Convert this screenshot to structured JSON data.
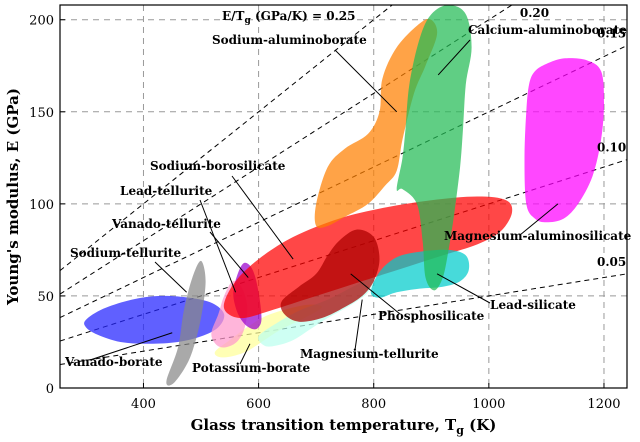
{
  "chart_data": {
    "type": "area",
    "xlabel": "Glass transition temperature, T",
    "xlabel_sub": "g",
    "xlabel_unit": " (K)",
    "ylabel": "Young's modulus, E (GPa)",
    "xlim": [
      255,
      1240
    ],
    "ylim": [
      0,
      208
    ],
    "xticks": [
      400,
      600,
      800,
      1000,
      1200
    ],
    "yticks": [
      0,
      50,
      100,
      150,
      200
    ],
    "grid": true,
    "ratio_lines": [
      {
        "value": 0.25,
        "label": "0.25",
        "prefix": "E/T",
        "prefix_sub": "g",
        "prefix_tail": " (GPa/K) = "
      },
      {
        "value": 0.2,
        "label": "0.20"
      },
      {
        "value": 0.15,
        "label": "0.15"
      },
      {
        "value": 0.1,
        "label": "0.10"
      },
      {
        "value": 0.05,
        "label": "0.05"
      }
    ],
    "regions": [
      {
        "name": "Vanado-borate",
        "color": "#2222ff",
        "points": [
          [
            300,
            37
          ],
          [
            330,
            43
          ],
          [
            380,
            48
          ],
          [
            430,
            50
          ],
          [
            480,
            49
          ],
          [
            520,
            46
          ],
          [
            540,
            40
          ],
          [
            530,
            33
          ],
          [
            500,
            28
          ],
          [
            460,
            25
          ],
          [
            410,
            24
          ],
          [
            360,
            25
          ],
          [
            320,
            29
          ],
          [
            300,
            33
          ]
        ]
      },
      {
        "name": "Sodium-tellurite",
        "color": "#888888",
        "points": [
          [
            440,
            4
          ],
          [
            460,
            22
          ],
          [
            470,
            42
          ],
          [
            485,
            60
          ],
          [
            500,
            69
          ],
          [
            508,
            58
          ],
          [
            500,
            38
          ],
          [
            485,
            20
          ],
          [
            470,
            10
          ],
          [
            450,
            2
          ]
        ]
      },
      {
        "name": "Potassium-borate",
        "color": "#ffff99",
        "points": [
          [
            525,
            20
          ],
          [
            550,
            26
          ],
          [
            580,
            33
          ],
          [
            620,
            40
          ],
          [
            680,
            45
          ],
          [
            710,
            44
          ],
          [
            680,
            38
          ],
          [
            640,
            32
          ],
          [
            610,
            26
          ],
          [
            580,
            20
          ],
          [
            550,
            17
          ],
          [
            530,
            17
          ]
        ]
      },
      {
        "name": "Lead-tellurite",
        "color": "#ff99cc",
        "points": [
          [
            518,
            30
          ],
          [
            530,
            40
          ],
          [
            540,
            50
          ],
          [
            555,
            58
          ],
          [
            570,
            55
          ],
          [
            580,
            45
          ],
          [
            576,
            33
          ],
          [
            562,
            25
          ],
          [
            540,
            22
          ],
          [
            525,
            24
          ]
        ]
      },
      {
        "name": "Vanado-tellurite",
        "color": "#9900cc",
        "points": [
          [
            556,
            52
          ],
          [
            565,
            63
          ],
          [
            576,
            68
          ],
          [
            590,
            64
          ],
          [
            600,
            52
          ],
          [
            605,
            38
          ],
          [
            600,
            33
          ],
          [
            590,
            32
          ],
          [
            575,
            35
          ],
          [
            562,
            42
          ]
        ]
      },
      {
        "name": "Magnesium-tellurite",
        "color": "#bbffee",
        "points": [
          [
            600,
            28
          ],
          [
            630,
            35
          ],
          [
            670,
            42
          ],
          [
            720,
            48
          ],
          [
            770,
            56
          ],
          [
            800,
            60
          ],
          [
            790,
            52
          ],
          [
            760,
            45
          ],
          [
            720,
            38
          ],
          [
            690,
            32
          ],
          [
            660,
            26
          ],
          [
            630,
            23
          ],
          [
            610,
            23
          ]
        ]
      },
      {
        "name": "Sodium-borosilicate",
        "color": "#ff0000",
        "points": [
          [
            540,
            46
          ],
          [
            560,
            58
          ],
          [
            600,
            70
          ],
          [
            660,
            82
          ],
          [
            740,
            92
          ],
          [
            820,
            98
          ],
          [
            900,
            102
          ],
          [
            980,
            104
          ],
          [
            1030,
            102
          ],
          [
            1040,
            95
          ],
          [
            1020,
            85
          ],
          [
            980,
            78
          ],
          [
            920,
            72
          ],
          [
            860,
            66
          ],
          [
            800,
            60
          ],
          [
            740,
            54
          ],
          [
            680,
            48
          ],
          [
            620,
            42
          ],
          [
            575,
            38
          ],
          [
            548,
            40
          ]
        ]
      },
      {
        "name": "Phosphosilicate",
        "color": "#aa0000",
        "points": [
          [
            640,
            47
          ],
          [
            670,
            55
          ],
          [
            700,
            62
          ],
          [
            720,
            72
          ],
          [
            740,
            80
          ],
          [
            770,
            86
          ],
          [
            800,
            82
          ],
          [
            810,
            70
          ],
          [
            800,
            58
          ],
          [
            780,
            50
          ],
          [
            750,
            44
          ],
          [
            710,
            38
          ],
          [
            670,
            36
          ],
          [
            645,
            40
          ]
        ]
      },
      {
        "name": "Lead-silicate",
        "color": "#00cccc",
        "points": [
          [
            795,
            52
          ],
          [
            810,
            63
          ],
          [
            840,
            71
          ],
          [
            880,
            74
          ],
          [
            930,
            75
          ],
          [
            960,
            72
          ],
          [
            965,
            64
          ],
          [
            950,
            58
          ],
          [
            920,
            55
          ],
          [
            880,
            54
          ],
          [
            840,
            52
          ],
          [
            810,
            49
          ]
        ]
      },
      {
        "name": "Sodium-aluminoborate",
        "color": "#ff8000",
        "points": [
          [
            700,
            88
          ],
          [
            700,
            100
          ],
          [
            720,
            120
          ],
          [
            750,
            130
          ],
          [
            790,
            138
          ],
          [
            810,
            150
          ],
          [
            815,
            168
          ],
          [
            840,
            185
          ],
          [
            880,
            198
          ],
          [
            900,
            200
          ],
          [
            910,
            192
          ],
          [
            890,
            175
          ],
          [
            870,
            160
          ],
          [
            850,
            135
          ],
          [
            840,
            118
          ],
          [
            820,
            110
          ],
          [
            790,
            100
          ],
          [
            750,
            93
          ],
          [
            720,
            88
          ]
        ]
      },
      {
        "name": "Calcium-aluminoborate",
        "color": "#22bb55",
        "points": [
          [
            840,
            108
          ],
          [
            850,
            125
          ],
          [
            855,
            140
          ],
          [
            862,
            165
          ],
          [
            880,
            190
          ],
          [
            900,
            203
          ],
          [
            930,
            208
          ],
          [
            960,
            203
          ],
          [
            970,
            185
          ],
          [
            960,
            165
          ],
          [
            955,
            140
          ],
          [
            950,
            120
          ],
          [
            940,
            95
          ],
          [
            930,
            75
          ],
          [
            920,
            60
          ],
          [
            905,
            53
          ],
          [
            890,
            60
          ],
          [
            885,
            80
          ],
          [
            875,
            100
          ],
          [
            850,
            108
          ]
        ]
      },
      {
        "name": "Magnesium-aluminosilicate",
        "color": "#ff00ff",
        "points": [
          [
            1070,
            165
          ],
          [
            1080,
            172
          ],
          [
            1100,
            176
          ],
          [
            1130,
            179
          ],
          [
            1170,
            178
          ],
          [
            1195,
            172
          ],
          [
            1200,
            155
          ],
          [
            1195,
            135
          ],
          [
            1180,
            115
          ],
          [
            1155,
            100
          ],
          [
            1130,
            92
          ],
          [
            1100,
            90
          ],
          [
            1080,
            92
          ],
          [
            1065,
            100
          ],
          [
            1062,
            125
          ],
          [
            1065,
            150
          ]
        ]
      }
    ],
    "annotations": [
      {
        "text": "Sodium-aluminoborate",
        "arrow_to": [
          840,
          150
        ]
      },
      {
        "text": "Calcium-aluminoborate",
        "arrow_to": [
          912,
          170
        ]
      },
      {
        "text": "Sodium-borosilicate",
        "arrow_to": [
          660,
          70
        ]
      },
      {
        "text": "Lead-tellurite",
        "arrow_to": [
          560,
          52
        ]
      },
      {
        "text": "Vanado-tellurite",
        "arrow_to": [
          582,
          60
        ]
      },
      {
        "text": "Sodium-tellurite",
        "arrow_to": [
          475,
          52
        ]
      },
      {
        "text": "Magnesium-aluminosilicate",
        "arrow_to": [
          1120,
          100
        ]
      },
      {
        "text": "Lead-silicate",
        "arrow_to": [
          910,
          62
        ]
      },
      {
        "text": "Phosphosilicate",
        "arrow_to": [
          760,
          62
        ]
      },
      {
        "text": "Magnesium-tellurite",
        "arrow_to": [
          780,
          48
        ]
      },
      {
        "text": "Potassium-borate",
        "arrow_to": [
          585,
          24
        ]
      },
      {
        "text": "Vanado-borate",
        "arrow_to": [
          450,
          30
        ]
      }
    ]
  }
}
